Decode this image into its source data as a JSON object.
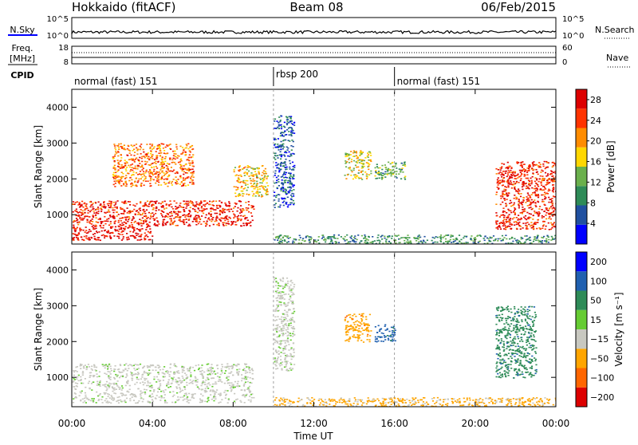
{
  "header": {
    "station": "Hokkaido (fitACF)",
    "beam": "Beam 08",
    "date": "06/Feb/2015"
  },
  "summary_panels": {
    "nsky_label": "N.Sky",
    "nsky_ticks": [
      "10^5",
      "10^0"
    ],
    "nsearch_label": "N.Search",
    "nsearch_ticks": [
      "10^5",
      "10^0"
    ],
    "freq_label_line1": "Freq.",
    "freq_label_line2": "[MHz]",
    "freq_ticks": [
      "18",
      "8"
    ],
    "nave_label": "Nave",
    "nave_ticks": [
      "60",
      "0"
    ],
    "cpid_label": "CPID"
  },
  "cpid_segments": [
    {
      "label": "normal (fast) 151",
      "start_hour": 0,
      "end_hour": 10
    },
    {
      "label": "rbsp 200",
      "start_hour": 10,
      "end_hour": 16
    },
    {
      "label": "normal (fast) 151",
      "start_hour": 16,
      "end_hour": 24
    }
  ],
  "chart_data": [
    {
      "type": "heatmap",
      "name": "power",
      "ylabel": "Slant Range [km]",
      "ylim": [
        180,
        4500
      ],
      "yticks": [
        "1000",
        "2000",
        "3000",
        "4000"
      ],
      "colorbar_label": "Power [dB]",
      "colorbar_ticks": [
        "4",
        "8",
        "12",
        "16",
        "20",
        "24",
        "28"
      ],
      "colorbar_range": [
        0,
        30
      ],
      "colors": [
        "#0000ff",
        "#2050a0",
        "#2e8b57",
        "#6ab04c",
        "#ffd700",
        "#ff8c00",
        "#ff3300",
        "#dd0000"
      ],
      "regions": [
        {
          "t": [
            0,
            9
          ],
          "range": [
            700,
            1400
          ],
          "value": 26
        },
        {
          "t": [
            0,
            4
          ],
          "range": [
            300,
            700
          ],
          "value": 28
        },
        {
          "t": [
            2,
            6
          ],
          "range": [
            1800,
            3000
          ],
          "value": 22
        },
        {
          "t": [
            8,
            9.7
          ],
          "range": [
            1500,
            2400
          ],
          "value": 18
        },
        {
          "t": [
            10,
            11
          ],
          "range": [
            1200,
            3800
          ],
          "value": 6
        },
        {
          "t": [
            13.5,
            14.8
          ],
          "range": [
            2000,
            2800
          ],
          "value": 16
        },
        {
          "t": [
            15,
            16.5
          ],
          "range": [
            2000,
            2500
          ],
          "value": 12
        },
        {
          "t": [
            21,
            24
          ],
          "range": [
            600,
            2500
          ],
          "value": 26
        },
        {
          "t": [
            10,
            24
          ],
          "range": [
            200,
            450
          ],
          "value": 10
        }
      ]
    },
    {
      "type": "heatmap",
      "name": "velocity",
      "xlabel": "Time UT",
      "xticks": [
        "00:00",
        "04:00",
        "08:00",
        "12:00",
        "16:00",
        "20:00",
        "00:00"
      ],
      "xlim": [
        0,
        24
      ],
      "ylabel": "Slant Range [km]",
      "ylim": [
        180,
        4500
      ],
      "yticks": [
        "1000",
        "2000",
        "3000",
        "4000"
      ],
      "colorbar_label": "Velocity [m s⁻¹]",
      "colorbar_ticks": [
        "200",
        "100",
        "50",
        "15",
        "−15",
        "−50",
        "−100",
        "−200"
      ],
      "colors": [
        "#0000ff",
        "#2060b0",
        "#2e8b57",
        "#66cc33",
        "#c8c8c0",
        "#ffa500",
        "#ff6600",
        "#dd0000"
      ],
      "regions": [
        {
          "t": [
            0,
            9
          ],
          "range": [
            300,
            1400
          ],
          "value": 0
        },
        {
          "t": [
            10,
            11
          ],
          "range": [
            1200,
            3800
          ],
          "value": 0
        },
        {
          "t": [
            13.5,
            14.8
          ],
          "range": [
            2000,
            2800
          ],
          "value": -40
        },
        {
          "t": [
            15,
            16
          ],
          "range": [
            2000,
            2500
          ],
          "value": 60
        },
        {
          "t": [
            21,
            23
          ],
          "range": [
            1000,
            3000
          ],
          "value": 40
        },
        {
          "t": [
            10,
            24
          ],
          "range": [
            200,
            450
          ],
          "value": -20
        }
      ]
    }
  ]
}
